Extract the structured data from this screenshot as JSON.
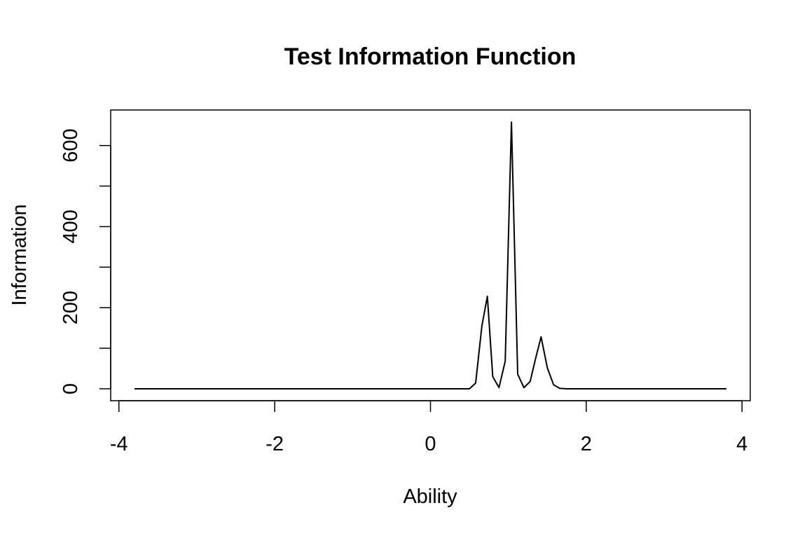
{
  "chart_data": {
    "type": "line",
    "title": "Test Information Function",
    "xlabel": "Ability",
    "ylabel": "Information",
    "xlim": [
      -3.8,
      3.8
    ],
    "ylim": [
      0,
      660
    ],
    "xticks": [
      -4,
      -2,
      0,
      2,
      4
    ],
    "yticks": [
      0,
      200,
      400,
      600
    ],
    "xtick_labels": [
      "-4",
      "-2",
      "0",
      "2",
      "4"
    ],
    "ytick_labels": [
      "0",
      "200",
      "400",
      "600"
    ],
    "ytick_minor": [
      100,
      300,
      500
    ],
    "grid": false,
    "line_color": "#000000",
    "series": [
      {
        "x": [
          -3.8,
          -3.0,
          -2.0,
          -1.0,
          0.0,
          0.3,
          0.5,
          0.58,
          0.66,
          0.73,
          0.8,
          0.88,
          0.96,
          1.04,
          1.12,
          1.2,
          1.28,
          1.35,
          1.42,
          1.5,
          1.58,
          1.66,
          1.75,
          2.0,
          3.0,
          3.8
        ],
        "y": [
          0,
          0,
          0,
          0,
          0,
          0,
          0,
          14,
          155,
          228,
          30,
          3,
          68,
          658,
          36,
          3,
          18,
          75,
          128,
          52,
          10,
          1,
          0,
          0,
          0,
          0
        ]
      }
    ]
  }
}
